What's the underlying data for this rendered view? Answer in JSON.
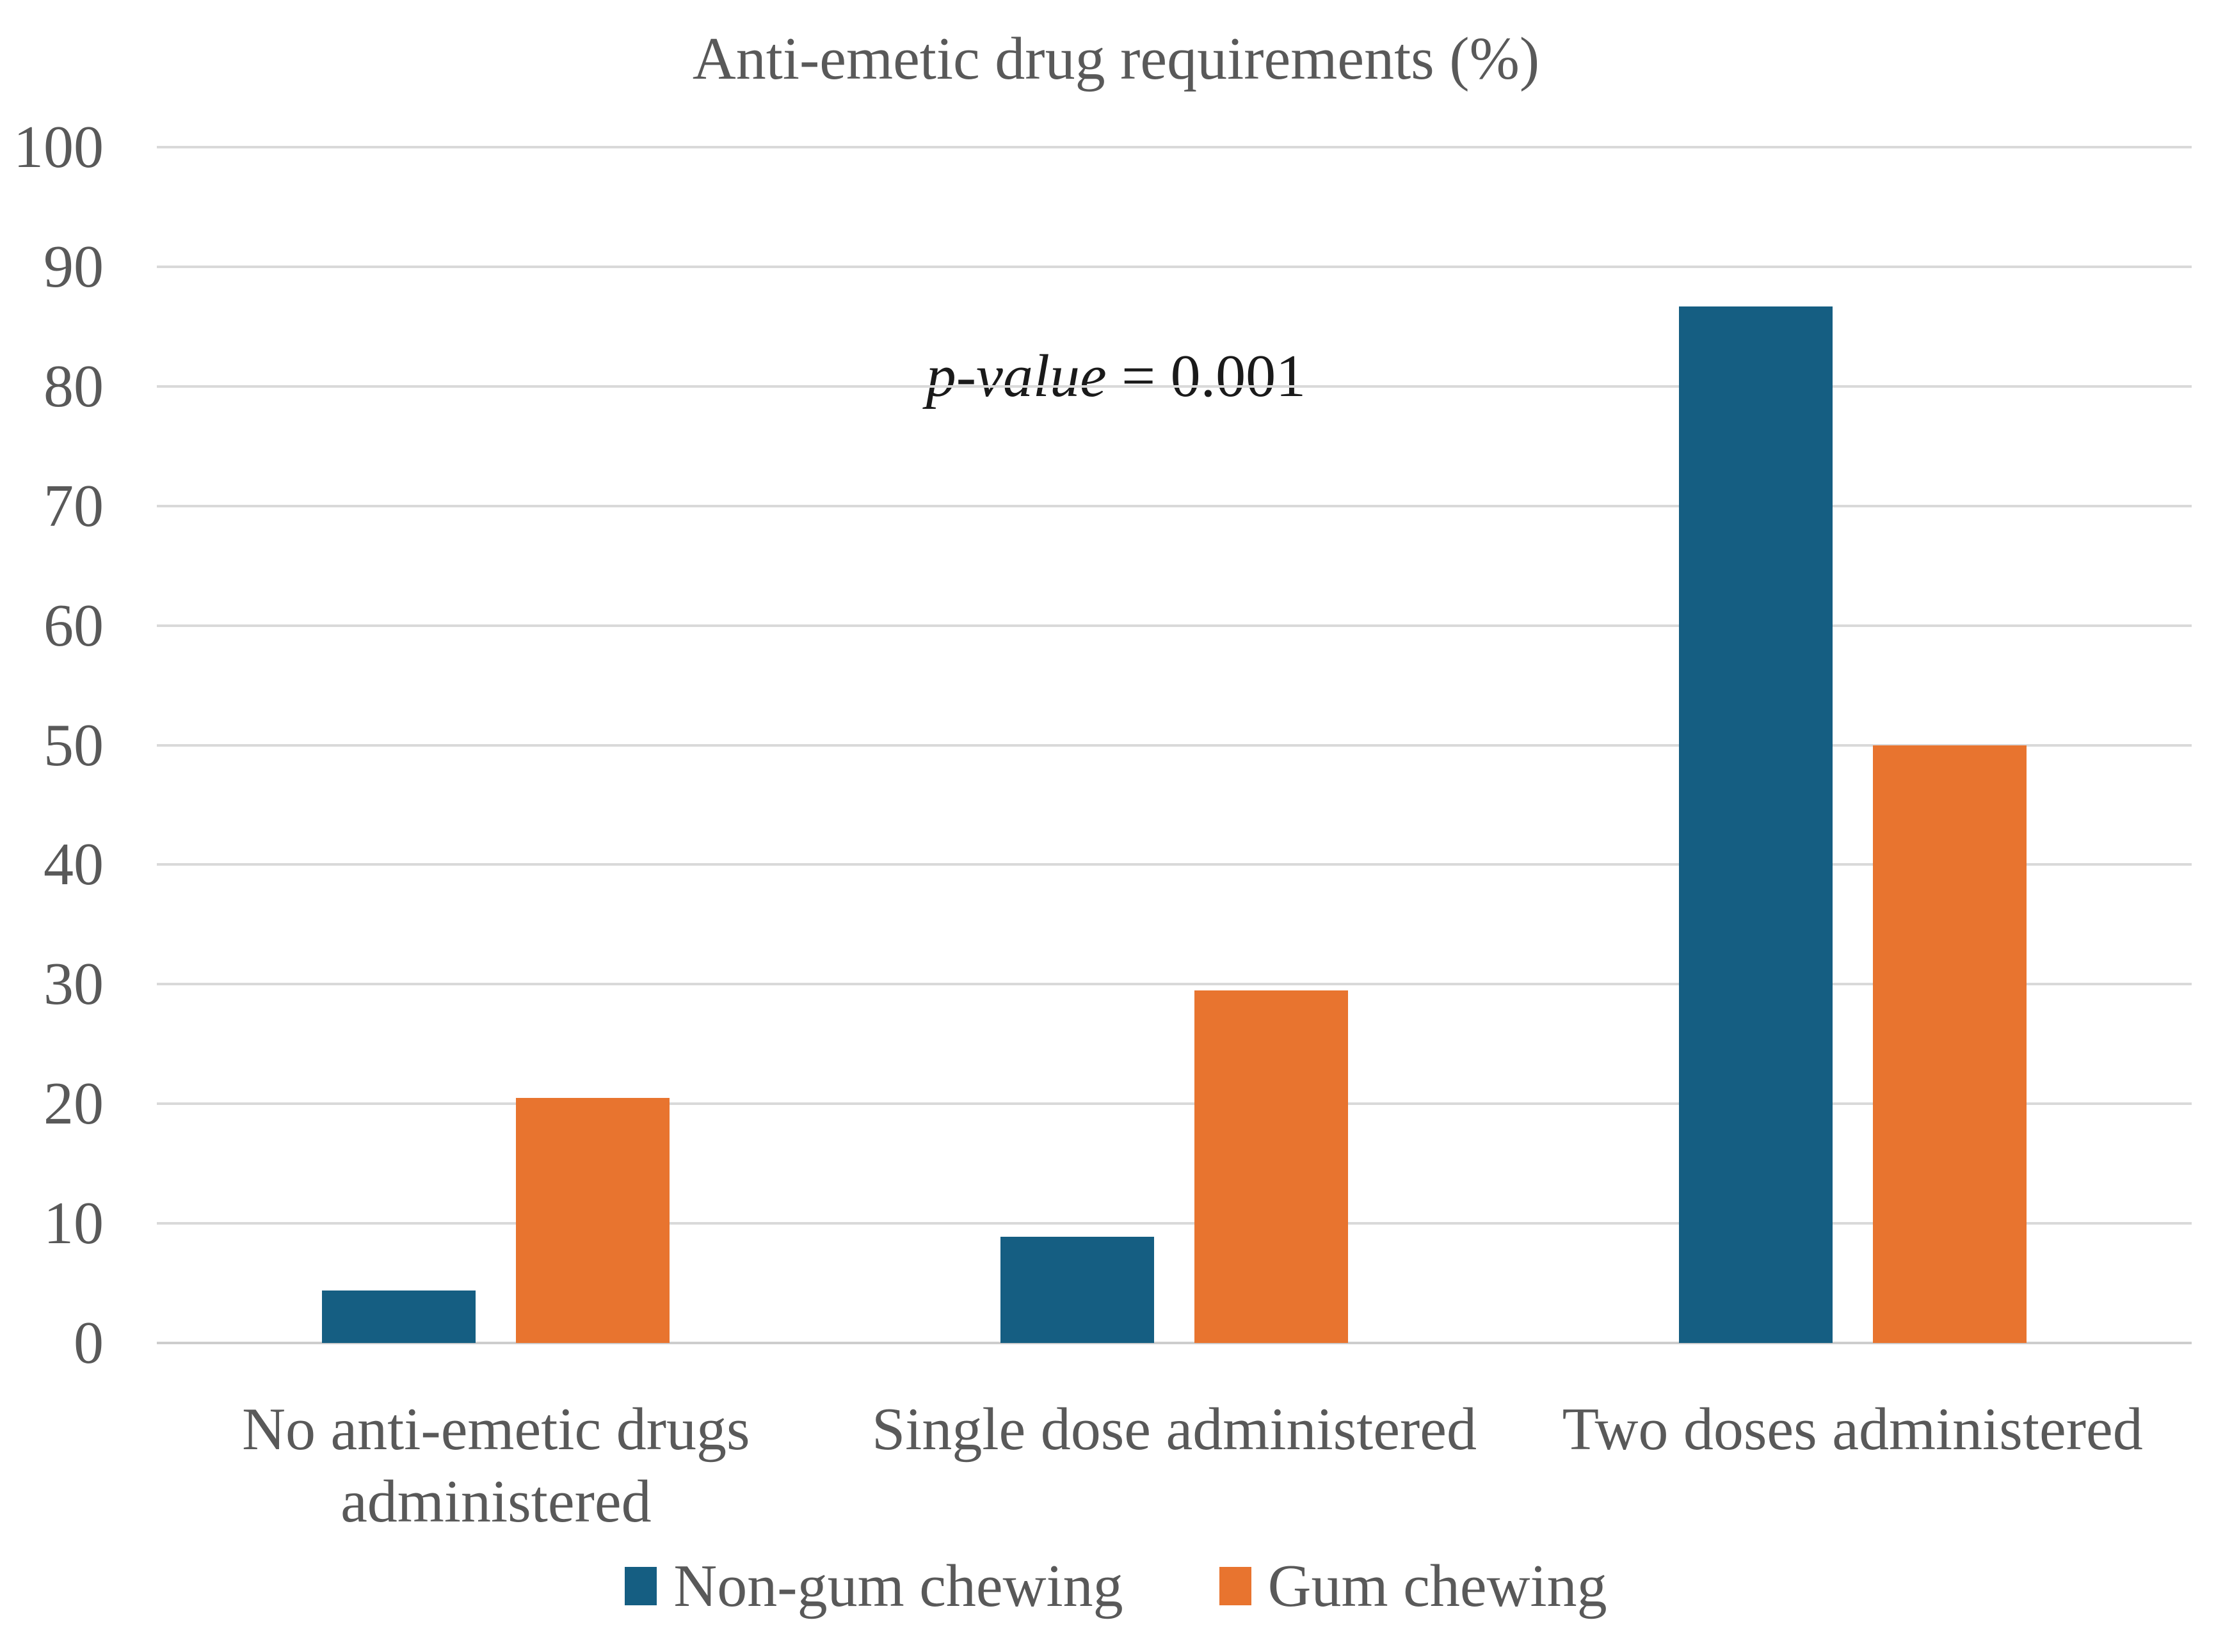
{
  "title": "Anti-emetic drug requirements (%)",
  "annotation": {
    "italic_part": "p-value",
    "equals_part": " = 0.001",
    "full": "p-value = 0.001"
  },
  "colors": {
    "non_gum_series": "#155e82",
    "gum_series": "#e8742f",
    "gridline": "#d9d9d9",
    "axis_line": "#cdcdcd",
    "text": "#595959"
  },
  "chart_data": {
    "type": "bar",
    "title": "Anti-emetic drug requirements (%)",
    "categories": [
      "No anti-emetic drugs administered",
      "Single dose administered",
      "Two doses administered"
    ],
    "series": [
      {
        "name": "Non-gum chewing",
        "color": "#155e82",
        "values": [
          4.4,
          8.9,
          86.7
        ]
      },
      {
        "name": "Gum chewing",
        "color": "#e8742f",
        "values": [
          20.5,
          29.5,
          50
        ]
      }
    ],
    "xlabel": "",
    "ylabel": "",
    "ylim": [
      0,
      100
    ],
    "yticks": [
      0,
      10,
      20,
      30,
      40,
      50,
      60,
      70,
      80,
      90,
      100
    ],
    "grid": true,
    "legend_position": "bottom",
    "annotation": "p-value = 0.001"
  }
}
